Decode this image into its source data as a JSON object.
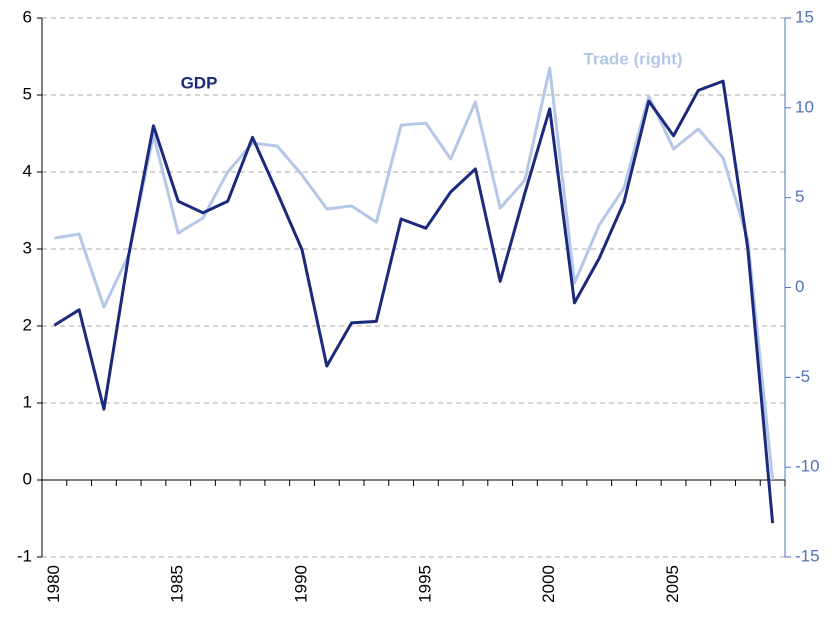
{
  "chart_data": {
    "type": "line",
    "annotations": [
      "GDP",
      "Trade (right)"
    ],
    "x": [
      1980,
      1981,
      1982,
      1983,
      1984,
      1985,
      1986,
      1987,
      1988,
      1989,
      1990,
      1991,
      1992,
      1993,
      1994,
      1995,
      1996,
      1997,
      1998,
      1999,
      2000,
      2001,
      2002,
      2003,
      2004,
      2005,
      2006,
      2007,
      2008,
      2009
    ],
    "series": [
      {
        "name": "GDP",
        "color": "#1b2a7c",
        "axis": "y",
        "values": [
          2.01,
          2.21,
          0.92,
          2.92,
          4.6,
          3.62,
          3.47,
          3.62,
          4.45,
          3.73,
          2.99,
          1.48,
          2.04,
          2.06,
          3.39,
          3.27,
          3.74,
          4.04,
          2.58,
          3.73,
          4.82,
          2.3,
          2.88,
          3.61,
          4.92,
          4.47,
          5.06,
          5.18,
          3.0,
          -0.56
        ]
      },
      {
        "name": "Trade (right)",
        "color": "#b4c7e7",
        "axis": "y2",
        "values": [
          2.75,
          2.98,
          -1.09,
          1.81,
          8.49,
          3.03,
          3.87,
          6.43,
          8.04,
          7.87,
          6.26,
          4.37,
          4.54,
          3.64,
          9.04,
          9.15,
          7.15,
          10.32,
          4.42,
          5.98,
          12.21,
          0.25,
          3.48,
          5.54,
          10.66,
          7.71,
          8.82,
          7.21,
          2.64,
          -10.71
        ]
      }
    ],
    "xlim": [
      1979.5,
      2009.5
    ],
    "xticks": [
      1980,
      1985,
      1990,
      1995,
      2000,
      2005
    ],
    "ylim": [
      -1,
      6
    ],
    "yticks": [
      -1,
      0,
      1,
      2,
      3,
      4,
      5,
      6
    ],
    "y2lim": [
      -15,
      15
    ],
    "y2ticks": [
      -15,
      -10,
      -5,
      0,
      5,
      10,
      15
    ],
    "y2color": "#4f74b8",
    "grid": true
  }
}
